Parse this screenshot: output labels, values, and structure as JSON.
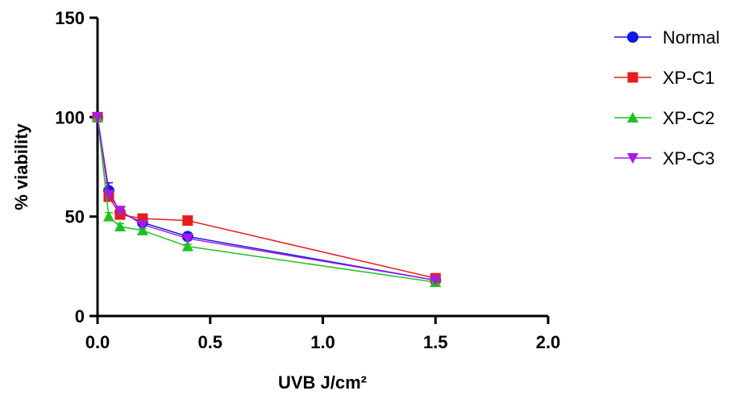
{
  "chart_data": {
    "type": "line",
    "xlabel": "UVB J/cm²",
    "ylabel": "% viability",
    "xlim": [
      0,
      2.0
    ],
    "ylim": [
      0,
      150
    ],
    "x_ticks": [
      "0.0",
      "0.5",
      "1.0",
      "1.5",
      "2.0"
    ],
    "y_ticks": [
      "0",
      "50",
      "100",
      "150"
    ],
    "grid": false,
    "legend_position": "right",
    "x": [
      0,
      0.05,
      0.1,
      0.2,
      0.4,
      1.5
    ],
    "series": [
      {
        "name": "Normal",
        "marker": "circle",
        "color": "#1515e6",
        "values": [
          100,
          63,
          52,
          47,
          40,
          18
        ],
        "err": [
          0,
          4,
          2,
          1.5,
          1.5,
          1
        ]
      },
      {
        "name": "XP-C1",
        "marker": "square",
        "color": "#e81c1c",
        "values": [
          100,
          60,
          51,
          49,
          48,
          19
        ],
        "err": [
          0,
          2,
          1.5,
          1,
          1,
          1
        ]
      },
      {
        "name": "XP-C2",
        "marker": "triangle-up",
        "color": "#1ec21e",
        "values": [
          100,
          50,
          45,
          43,
          35,
          17
        ],
        "err": [
          0,
          2,
          1.5,
          1,
          1,
          1
        ]
      },
      {
        "name": "XP-C3",
        "marker": "triangle-down",
        "color": "#a21ee6",
        "values": [
          100,
          61,
          53,
          46,
          39,
          18
        ],
        "err": [
          0,
          2,
          1.5,
          1,
          1,
          1
        ]
      }
    ]
  }
}
